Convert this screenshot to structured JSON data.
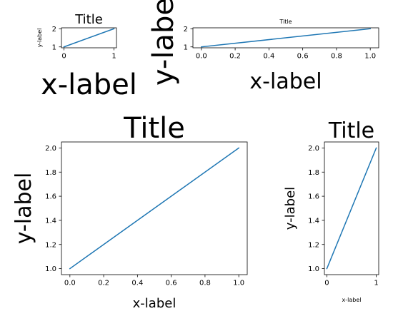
{
  "figure": {
    "background": "#ffffff",
    "line_color": "#1f77b4"
  },
  "chart_data": [
    {
      "type": "line",
      "x": [
        0,
        1
      ],
      "y": [
        1,
        2
      ],
      "title": "Title",
      "xlabel": "x-label",
      "ylabel": "y-label",
      "xlim": [
        -0.05,
        1.05
      ],
      "ylim": [
        0.95,
        2.05
      ],
      "xticks": [
        0,
        1
      ],
      "xtick_labels": [
        "0",
        "1"
      ],
      "yticks": [
        1,
        2
      ],
      "ytick_labels": [
        "1",
        "2"
      ],
      "grid": false,
      "legend": "none"
    },
    {
      "type": "line",
      "x": [
        0,
        1
      ],
      "y": [
        1,
        2
      ],
      "title": "Title",
      "xlabel": "x-label",
      "ylabel": "y-label",
      "xlim": [
        -0.05,
        1.05
      ],
      "ylim": [
        0.95,
        2.05
      ],
      "xticks": [
        0,
        0.2,
        0.4,
        0.6,
        0.8,
        1.0
      ],
      "xtick_labels": [
        "0.0",
        "0.2",
        "0.4",
        "0.6",
        "0.8",
        "1.0"
      ],
      "yticks": [
        1,
        2
      ],
      "ytick_labels": [
        "1",
        "2"
      ],
      "grid": false,
      "legend": "none"
    },
    {
      "type": "line",
      "x": [
        0,
        1
      ],
      "y": [
        1,
        2
      ],
      "title": "Title",
      "xlabel": "x-label",
      "ylabel": "y-label",
      "xlim": [
        -0.05,
        1.05
      ],
      "ylim": [
        0.95,
        2.05
      ],
      "xticks": [
        0,
        0.2,
        0.4,
        0.6,
        0.8,
        1.0
      ],
      "xtick_labels": [
        "0.0",
        "0.2",
        "0.4",
        "0.6",
        "0.8",
        "1.0"
      ],
      "yticks": [
        1.0,
        1.2,
        1.4,
        1.6,
        1.8,
        2.0
      ],
      "ytick_labels": [
        "1.0",
        "1.2",
        "1.4",
        "1.6",
        "1.8",
        "2.0"
      ],
      "grid": false,
      "legend": "none"
    },
    {
      "type": "line",
      "x": [
        0,
        1
      ],
      "y": [
        1,
        2
      ],
      "title": "Title",
      "xlabel": "x-label",
      "ylabel": "y-label",
      "xlim": [
        -0.05,
        1.05
      ],
      "ylim": [
        0.95,
        2.05
      ],
      "xticks": [
        0,
        1
      ],
      "xtick_labels": [
        "0",
        "1"
      ],
      "yticks": [
        1.0,
        1.2,
        1.4,
        1.6,
        1.8,
        2.0
      ],
      "ytick_labels": [
        "1.0",
        "1.2",
        "1.4",
        "1.6",
        "1.8",
        "2.0"
      ],
      "grid": false,
      "legend": "none"
    }
  ]
}
